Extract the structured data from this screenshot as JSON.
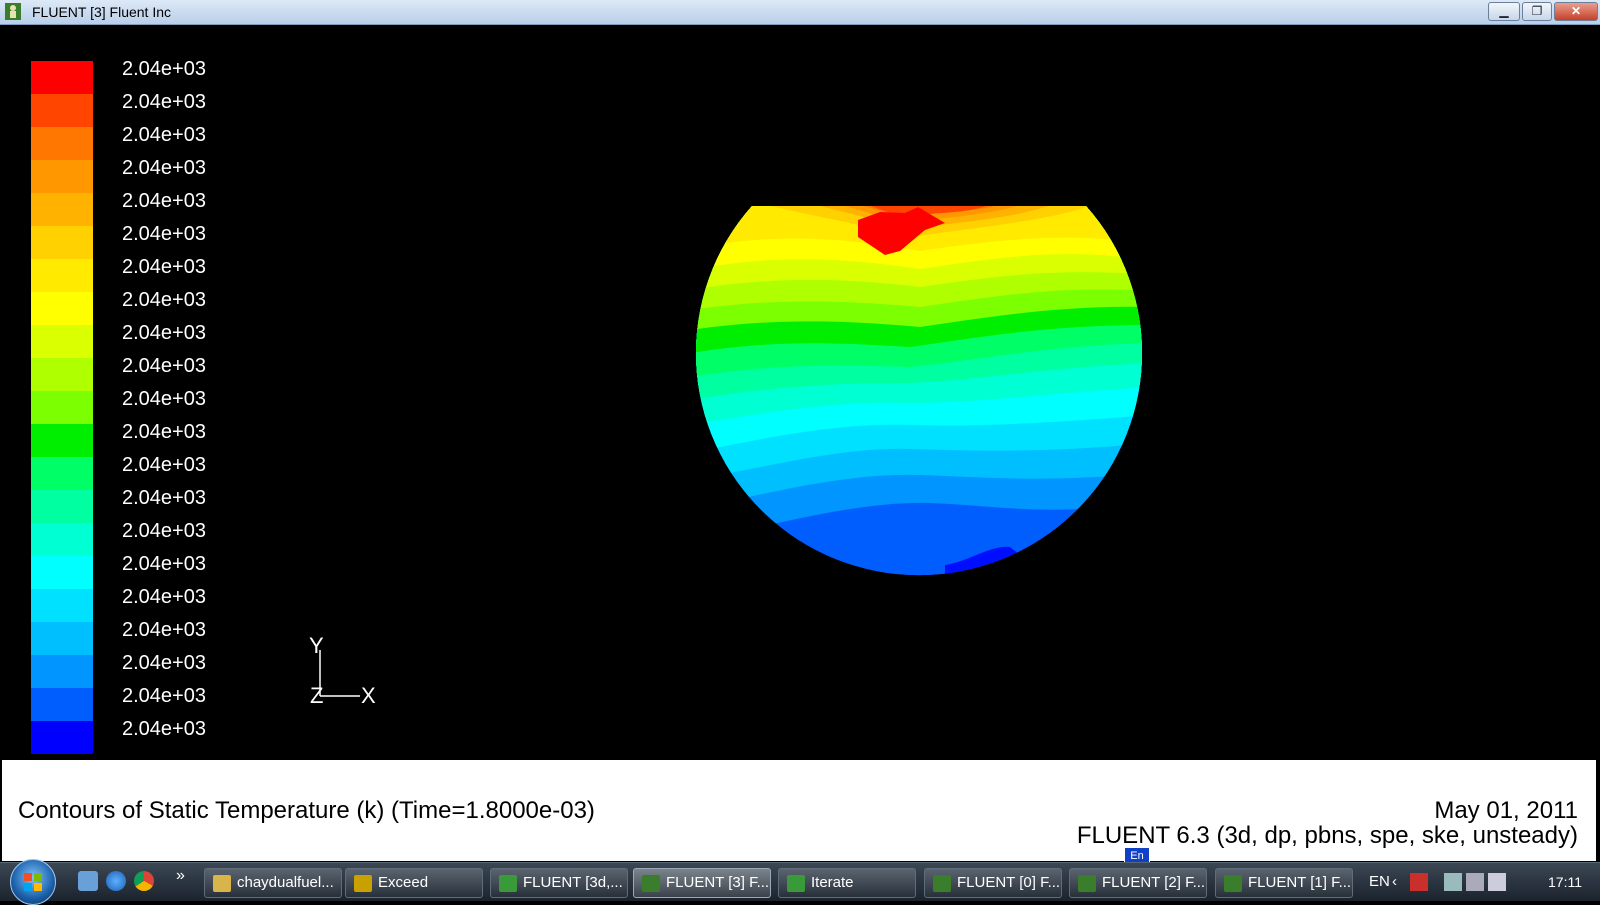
{
  "window": {
    "title": "FLUENT [3] Fluent Inc",
    "minimize_icon": "minimize-icon",
    "restore_icon": "restore-icon",
    "close_icon": "close-icon"
  },
  "colormap": {
    "labels": [
      "2.04e+03",
      "2.04e+03",
      "2.04e+03",
      "2.04e+03",
      "2.04e+03",
      "2.04e+03",
      "2.04e+03",
      "2.04e+03",
      "2.04e+03",
      "2.04e+03",
      "2.04e+03",
      "2.04e+03",
      "2.04e+03",
      "2.04e+03",
      "2.04e+03",
      "2.04e+03",
      "2.04e+03",
      "2.04e+03",
      "2.04e+03",
      "2.04e+03",
      "2.04e+03"
    ],
    "colors": [
      "#ff0000",
      "#ff4500",
      "#ff7600",
      "#ff9800",
      "#ffb300",
      "#ffd100",
      "#ffea00",
      "#ffff00",
      "#d9ff00",
      "#b0ff00",
      "#7cff00",
      "#00ee00",
      "#00ff66",
      "#00ffa0",
      "#00ffd2",
      "#00ffff",
      "#00e0ff",
      "#00bfff",
      "#0095ff",
      "#005eff",
      "#0000ff"
    ]
  },
  "axes": {
    "y": "Y",
    "x": "X",
    "z": "Z"
  },
  "caption": {
    "title": "Contours of Static Temperature (k)  (Time=1.8000e-03)",
    "date": "May 01, 2011",
    "version": "FLUENT 6.3 (3d, dp, pbns, spe, ske, unsteady)",
    "ime_badge": "En"
  },
  "taskbar": {
    "items": [
      {
        "label": "chaydualfuel...",
        "icon": "folder-icon",
        "active": false
      },
      {
        "label": "Exceed",
        "icon": "exceed-icon",
        "active": false
      },
      {
        "label": "FLUENT  [3d,...",
        "icon": "fluent-graphics-icon",
        "active": false
      },
      {
        "label": "FLUENT [3] F...",
        "icon": "fluent-icon",
        "active": true
      },
      {
        "label": "Iterate",
        "icon": "fluent-graphics-icon",
        "active": false
      },
      {
        "label": "FLUENT [0] F...",
        "icon": "fluent-icon",
        "active": false
      },
      {
        "label": "FLUENT [2] F...",
        "icon": "fluent-icon",
        "active": false
      },
      {
        "label": "FLUENT [1] F...",
        "icon": "fluent-icon",
        "active": false
      }
    ],
    "language": "EN",
    "clock": "17:11",
    "more": "»"
  }
}
